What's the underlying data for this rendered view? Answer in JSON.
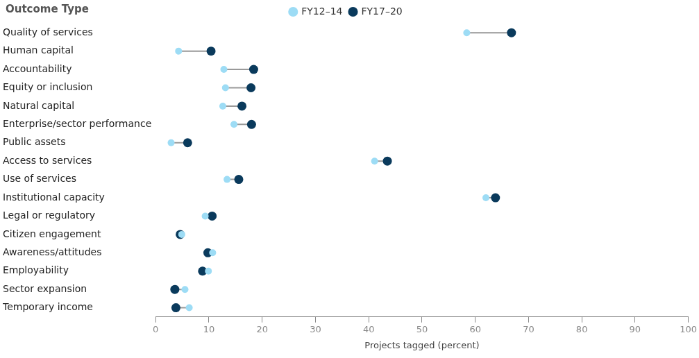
{
  "chart_data": {
    "type": "scatter",
    "ylabel": "Outcome Type",
    "xlabel": "Projects tagged (percent)",
    "categories": [
      "Quality of services",
      "Human capital",
      "Accountability",
      "Equity or inclusion",
      "Natural capital",
      "Enterprise/sector performance",
      "Public assets",
      "Access to services",
      "Use of services",
      "Institutional capacity",
      "Legal or regulatory",
      "Citizen engagement",
      "Awareness/attitudes",
      "Employability",
      "Sector expansion",
      "Temporary income"
    ],
    "orientation": "horizontal",
    "series": [
      {
        "name": "FY12–14",
        "color": "#9ddcf5",
        "values": [
          58.4,
          4.3,
          12.8,
          13.1,
          12.6,
          14.7,
          2.9,
          41.1,
          13.4,
          62.0,
          9.3,
          4.9,
          10.7,
          9.9,
          5.5,
          6.3
        ]
      },
      {
        "name": "FY17–20",
        "color": "#0a3a5c",
        "values": [
          66.8,
          10.4,
          18.4,
          17.9,
          16.2,
          18.0,
          6.0,
          43.5,
          15.6,
          63.8,
          10.6,
          4.6,
          9.8,
          8.8,
          3.6,
          3.8
        ]
      }
    ],
    "xlim": [
      0,
      100
    ],
    "xticks": [
      0,
      10,
      20,
      30,
      40,
      50,
      60,
      70,
      80,
      90,
      100
    ],
    "grid": false,
    "legend": "top",
    "marker": "circle"
  }
}
